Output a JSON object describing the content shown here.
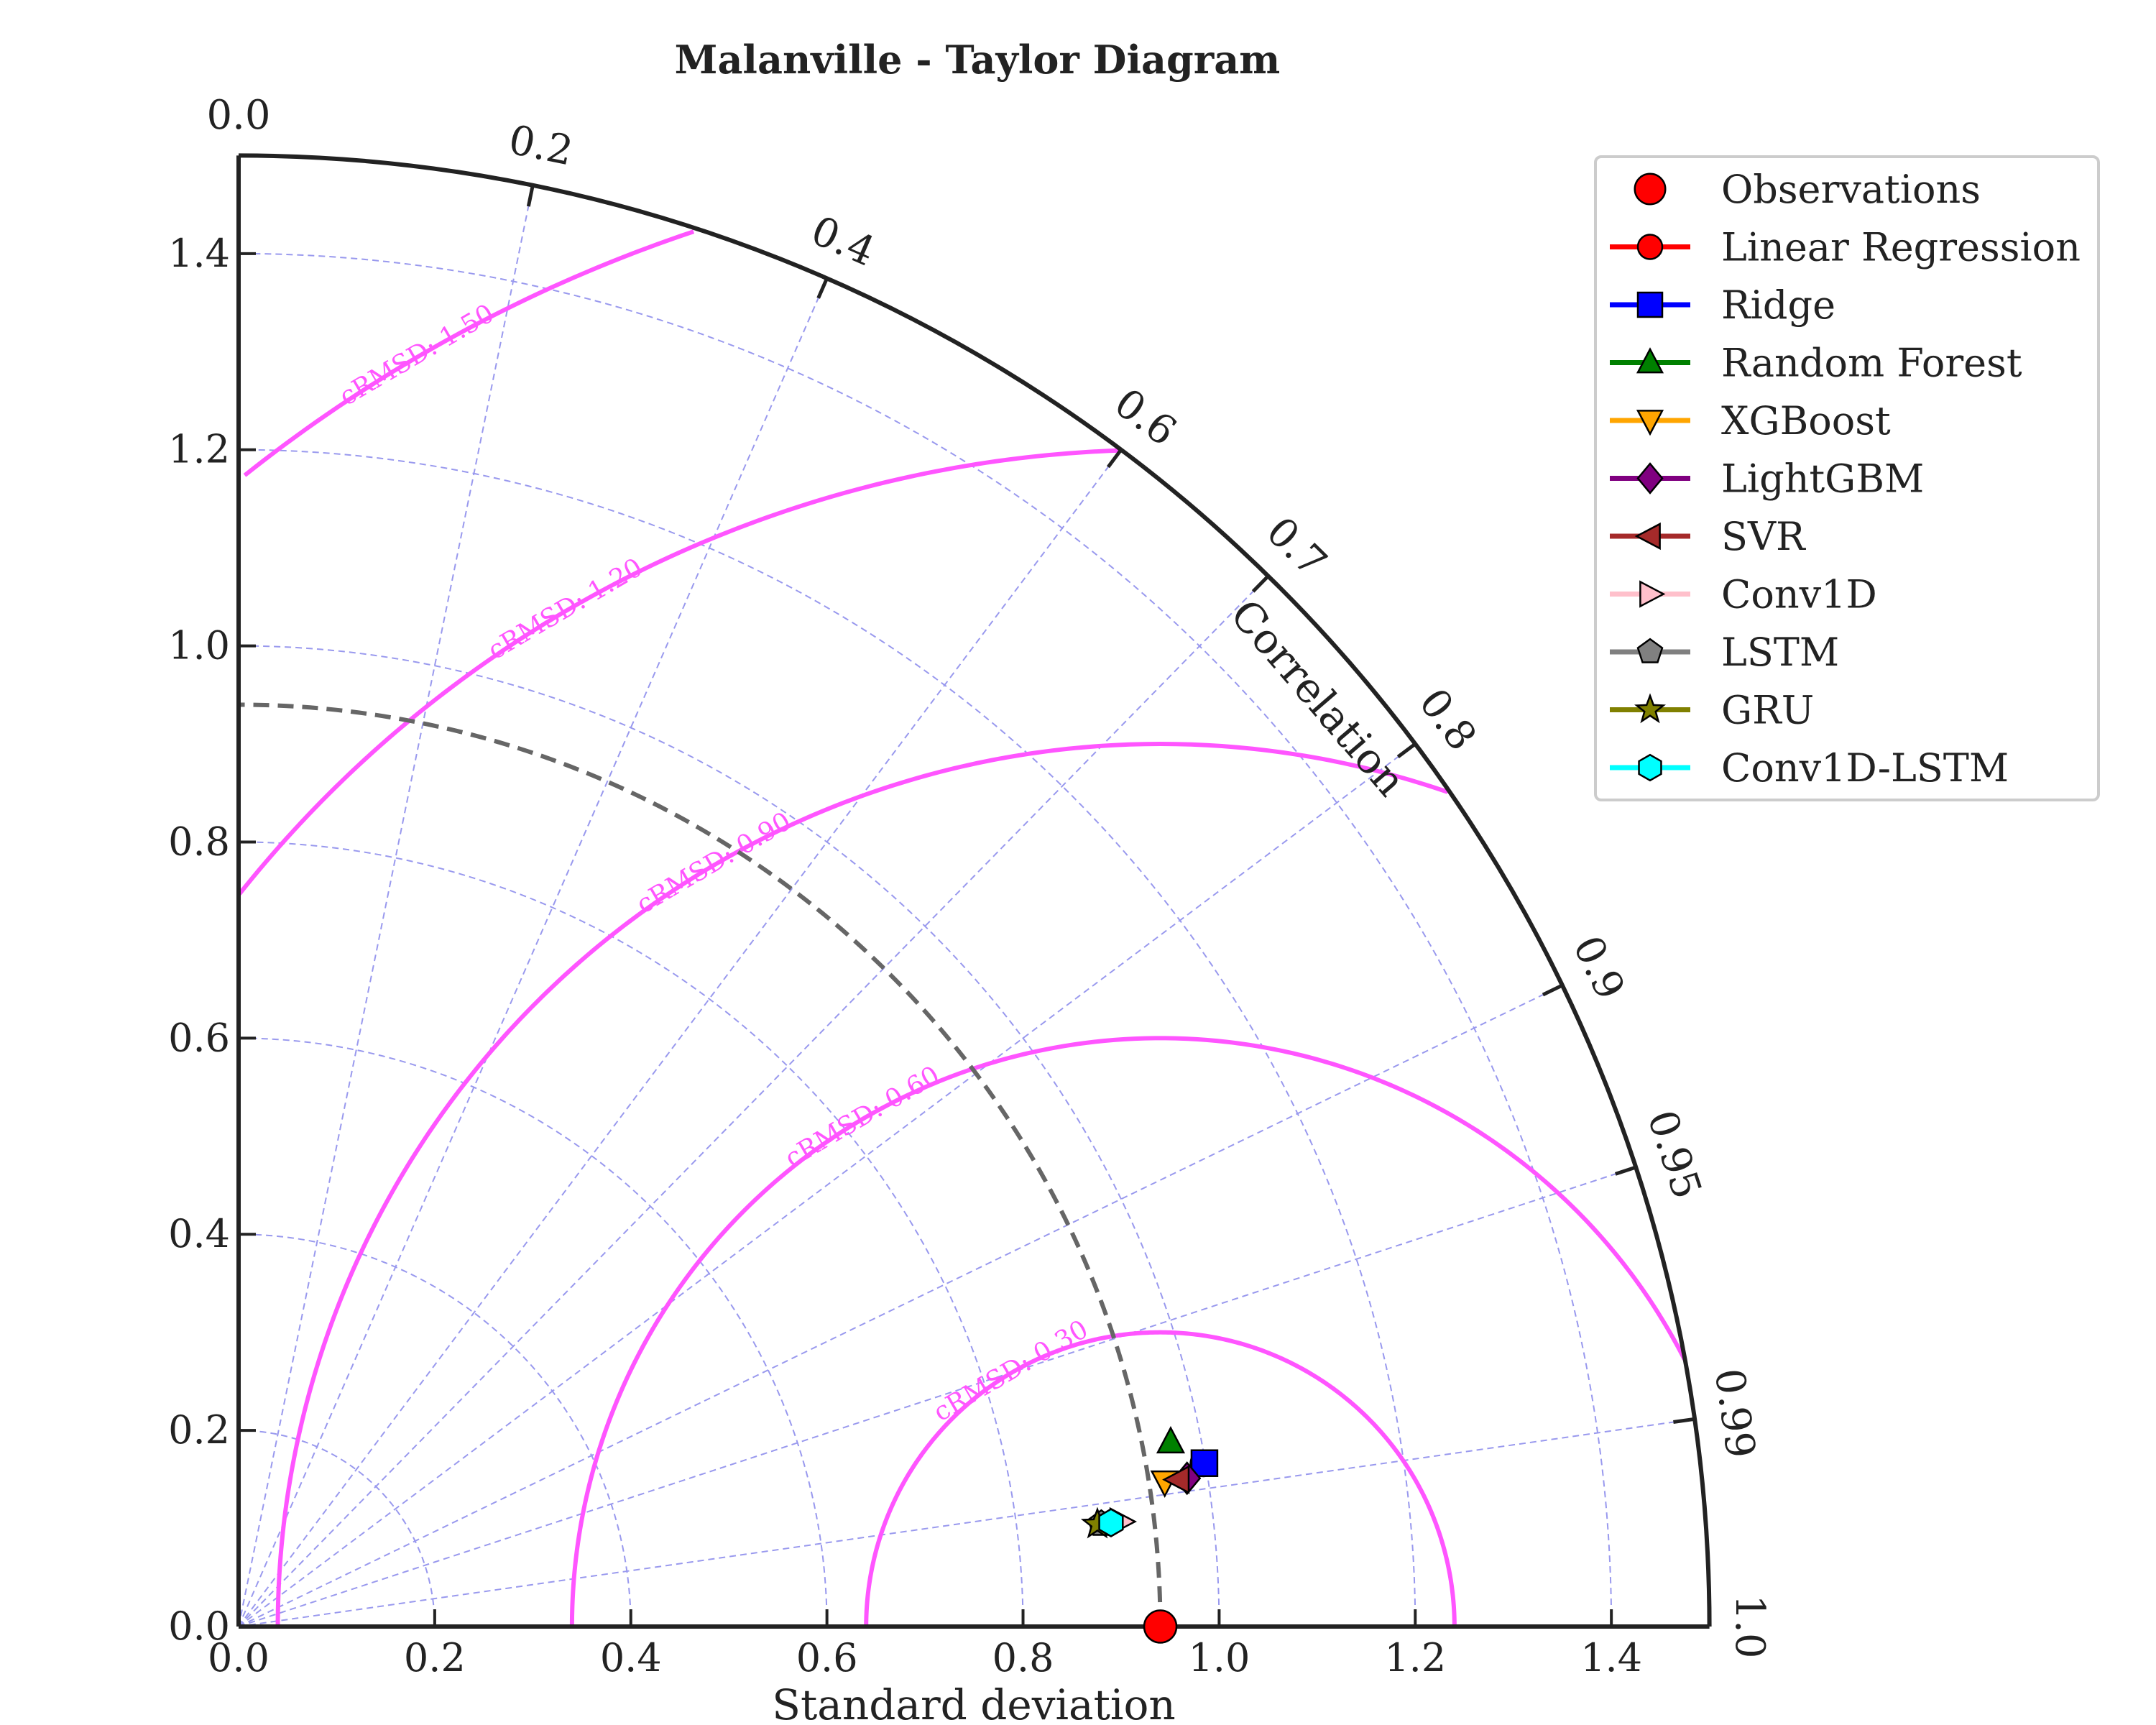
{
  "chart_data": {
    "type": "scatter",
    "subtype": "taylor-diagram",
    "title": "Malanville - Taylor Diagram",
    "xlabel": "Standard deviation",
    "ylabel": "",
    "angular_label": "Correlation",
    "std_range": [
      0.0,
      1.5
    ],
    "std_ticks": [
      0.0,
      0.2,
      0.4,
      0.6,
      0.8,
      1.0,
      1.2,
      1.4
    ],
    "std_tick_labels": [
      "0.0",
      "0.2",
      "0.4",
      "0.6",
      "0.8",
      "1.0",
      "1.2",
      "1.4"
    ],
    "correlation_ticks": [
      0.0,
      0.2,
      0.4,
      0.6,
      0.7,
      0.8,
      0.9,
      0.95,
      0.99,
      1.0
    ],
    "correlation_tick_labels": [
      "0.0",
      "0.2",
      "0.4",
      "0.6",
      "0.7",
      "0.8",
      "0.9",
      "0.95",
      "0.99",
      "1.0"
    ],
    "std_grid_levels": [
      0.2,
      0.4,
      0.6,
      0.8,
      1.0,
      1.2,
      1.4
    ],
    "grid": true,
    "reference_std": 0.94,
    "crmsd_levels": [
      0.3,
      0.6,
      0.9,
      1.2,
      1.5
    ],
    "crmsd_labels": [
      "cRMSD: 0.30",
      "cRMSD: 0.60",
      "cRMSD: 0.90",
      "cRMSD: 1.20",
      "cRMSD: 1.50"
    ],
    "legend_position": "top-right",
    "series": [
      {
        "name": "Observations",
        "marker": "circle-large",
        "color": "#ff0000",
        "std": 0.94,
        "corr": 1.0
      },
      {
        "name": "Linear Regression",
        "marker": "circle",
        "color": "#ff0000",
        "std": 0.998,
        "corr": 0.986
      },
      {
        "name": "Ridge",
        "marker": "square",
        "color": "#0000ff",
        "std": 0.999,
        "corr": 0.986
      },
      {
        "name": "Random Forest",
        "marker": "triangle-up",
        "color": "#008000",
        "std": 0.969,
        "corr": 0.981
      },
      {
        "name": "XGBoost",
        "marker": "triangle-down",
        "color": "#ffa500",
        "std": 0.956,
        "corr": 0.988
      },
      {
        "name": "LightGBM",
        "marker": "diamond",
        "color": "#800080",
        "std": 0.979,
        "corr": 0.988
      },
      {
        "name": "SVR",
        "marker": "triangle-left",
        "color": "#a52a2a",
        "std": 0.97,
        "corr": 0.988
      },
      {
        "name": "Conv1D",
        "marker": "triangle-right",
        "color": "#ffc0cb",
        "std": 0.906,
        "corr": 0.993
      },
      {
        "name": "LSTM",
        "marker": "pentagon",
        "color": "#808080",
        "std": 0.886,
        "corr": 0.993
      },
      {
        "name": "GRU",
        "marker": "star",
        "color": "#808000",
        "std": 0.882,
        "corr": 0.993
      },
      {
        "name": "Conv1D-LSTM",
        "marker": "hexagon",
        "color": "#00ffff",
        "std": 0.896,
        "corr": 0.993
      }
    ],
    "colors": {
      "axis": "#222222",
      "grid": "#9999ee",
      "crmsd": "#ff55ff",
      "reference_arc": "#666666"
    }
  }
}
